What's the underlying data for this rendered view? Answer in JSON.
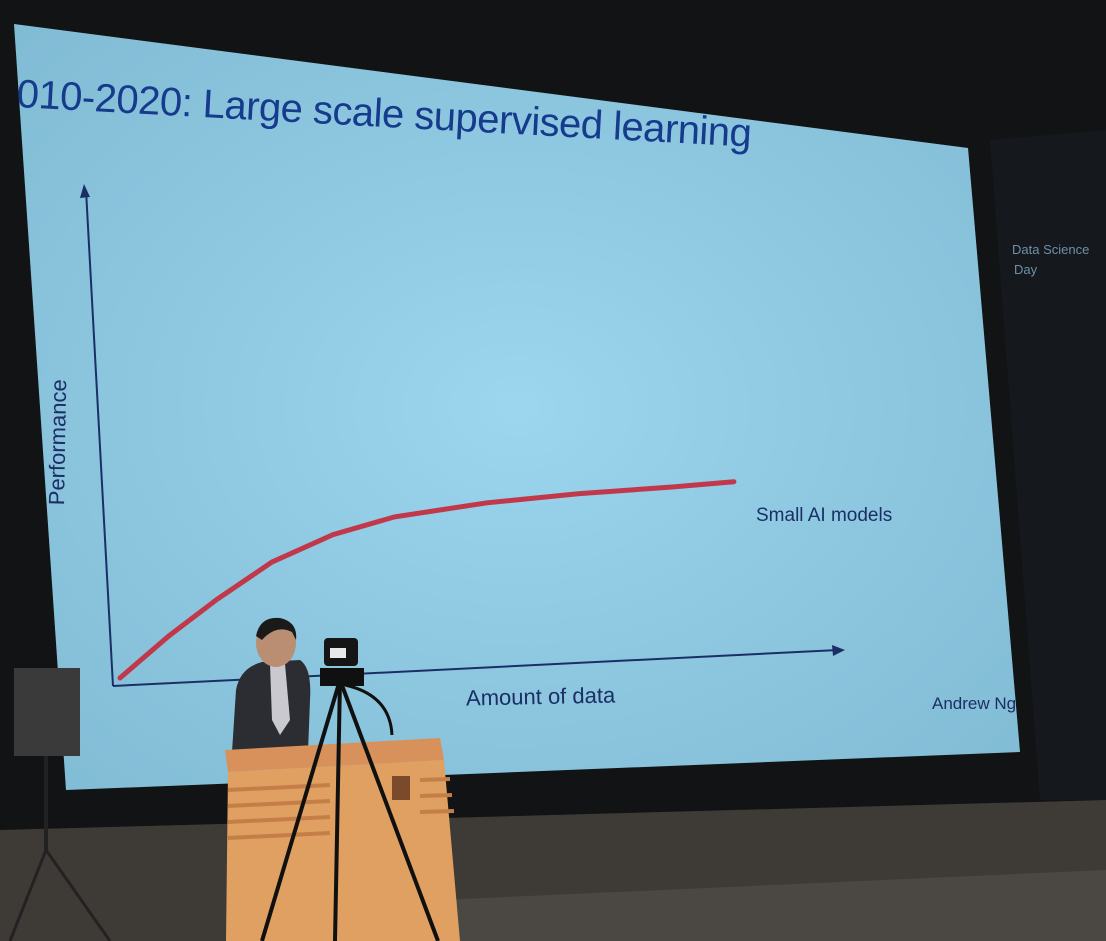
{
  "slide": {
    "title": "010-2020: Large scale supervised learning",
    "author": "Andrew Ng",
    "background_color": "#8fd0ec",
    "text_color": "#1b2f66"
  },
  "chart_data": {
    "type": "line",
    "title": "010-2020: Large scale supervised learning",
    "xlabel": "Amount of data",
    "ylabel": "Performance",
    "series": [
      {
        "name": "Small AI models",
        "color": "#c0384a",
        "x": [
          0,
          0.08,
          0.16,
          0.25,
          0.35,
          0.45,
          0.6,
          0.75,
          0.9,
          1.0
        ],
        "y": [
          0.0,
          0.08,
          0.15,
          0.22,
          0.27,
          0.3,
          0.32,
          0.33,
          0.335,
          0.34
        ]
      }
    ]
  },
  "banner": {
    "line1": "Data Science",
    "line2": "Day"
  }
}
